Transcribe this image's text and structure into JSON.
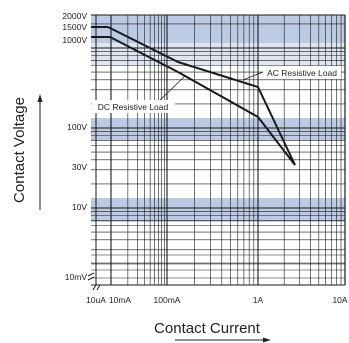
{
  "chart_data": {
    "type": "line",
    "xlabel": "Contact Current",
    "ylabel": "Contact Voltage",
    "x_scale": "log",
    "y_scale": "log",
    "xlim": [
      "10uA",
      "10A"
    ],
    "x_tick_labels": [
      "10uA",
      "10mA",
      "100mA",
      "1A",
      "10A"
    ],
    "y_tick_labels": [
      "2000V",
      "1500V",
      "1000V",
      "100V",
      "30V",
      "10V",
      "10mV"
    ],
    "grid": true,
    "series": [
      {
        "name": "AC Resistive Load",
        "points": [
          {
            "x": "10mA",
            "y": "2000V"
          },
          {
            "x": "100mA",
            "y": "1000V"
          },
          {
            "x": "1A",
            "y": "800V"
          },
          {
            "x": "3A",
            "y": "50V"
          }
        ]
      },
      {
        "name": "DC Resistive Load",
        "points": [
          {
            "x": "10uA",
            "y": "1500V"
          },
          {
            "x": "10mA",
            "y": "1500V"
          },
          {
            "x": "100mA",
            "y": "700V"
          },
          {
            "x": "1A",
            "y": "200V"
          },
          {
            "x": "3A",
            "y": "50V"
          }
        ]
      }
    ],
    "colors": {
      "band": "#bccbe3",
      "band_light": "#dfe6f2",
      "grid": "#1a1a1a",
      "line": "#1a1a1a"
    }
  }
}
